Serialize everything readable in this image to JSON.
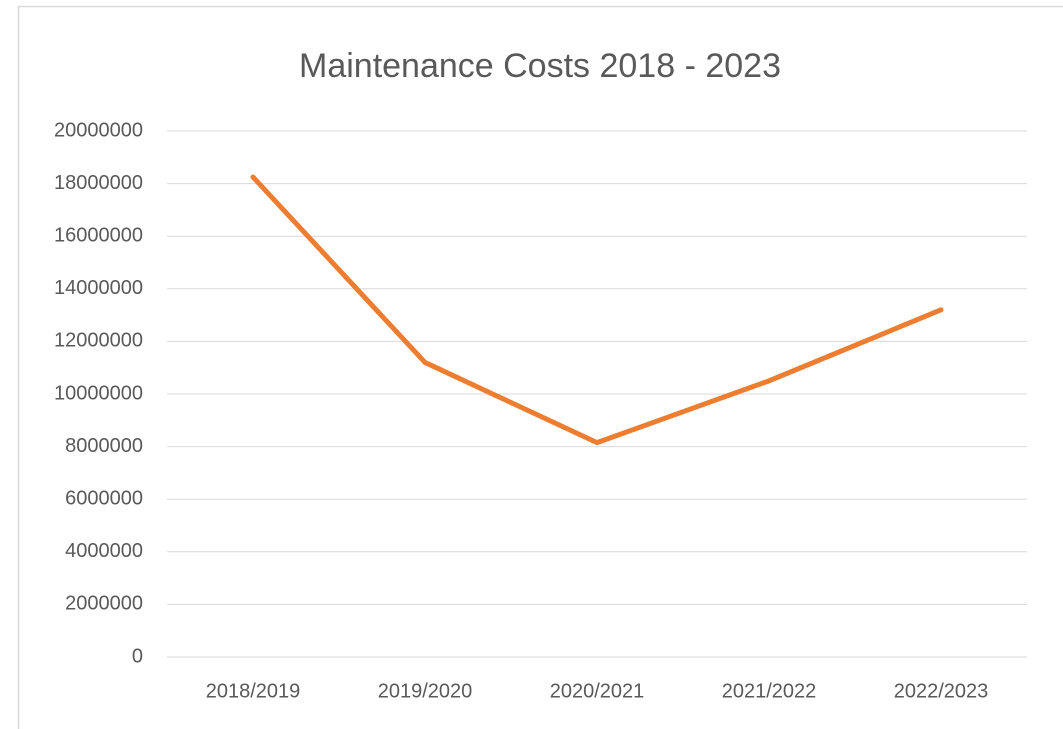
{
  "chart_data": {
    "type": "line",
    "title": "Maintenance Costs 2018 - 2023",
    "categories": [
      "2018/2019",
      "2019/2020",
      "2020/2021",
      "2021/2022",
      "2022/2023"
    ],
    "series": [
      {
        "name": "Maintenance Costs",
        "color": "#ed7d31",
        "values": [
          18250000,
          11200000,
          8150000,
          10500000,
          13200000
        ]
      }
    ],
    "ylim": [
      0,
      20000000
    ],
    "yticks": [
      0,
      2000000,
      4000000,
      6000000,
      8000000,
      10000000,
      12000000,
      14000000,
      16000000,
      18000000,
      20000000
    ],
    "grid": true
  }
}
